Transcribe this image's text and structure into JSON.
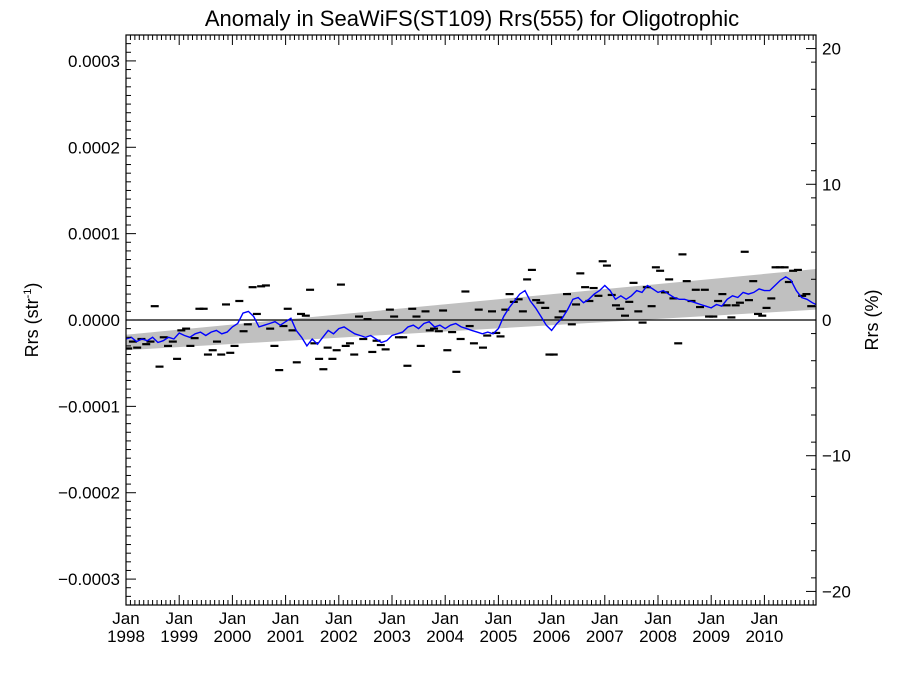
{
  "chart_data": {
    "type": "line",
    "title": "Anomaly in SeaWiFS(ST109) Rrs(555) for Oligotrophic",
    "ylabel_left": "Rrs (str",
    "ylabel_left_sup": "-1",
    "ylabel_left_close": ")",
    "ylabel_right": "Rrs (%)",
    "x_range": [
      1998.0,
      2010.97
    ],
    "y_left_range": [
      -0.00033,
      0.00033
    ],
    "y_right_range": [
      -21.0,
      21.0
    ],
    "grid": false,
    "left_ticks": [
      {
        "value": 0.0003,
        "label": "0.0003"
      },
      {
        "value": 0.0002,
        "label": "0.0002"
      },
      {
        "value": 0.0001,
        "label": "0.0001"
      },
      {
        "value": 0.0,
        "label": "0.0000"
      },
      {
        "value": -0.0001,
        "label": "−0.0001"
      },
      {
        "value": -0.0002,
        "label": "−0.0002"
      },
      {
        "value": -0.0003,
        "label": "−0.0003"
      }
    ],
    "right_ticks": [
      {
        "value": 20,
        "label": "20"
      },
      {
        "value": 10,
        "label": "10"
      },
      {
        "value": 0,
        "label": "0"
      },
      {
        "value": -10,
        "label": "−10"
      },
      {
        "value": -20,
        "label": "−20"
      }
    ],
    "x_ticks": [
      {
        "value": 1998,
        "month": "Jan",
        "year": "1998"
      },
      {
        "value": 1999,
        "month": "Jan",
        "year": "1999"
      },
      {
        "value": 2000,
        "month": "Jan",
        "year": "2000"
      },
      {
        "value": 2001,
        "month": "Jan",
        "year": "2001"
      },
      {
        "value": 2002,
        "month": "Jan",
        "year": "2002"
      },
      {
        "value": 2003,
        "month": "Jan",
        "year": "2003"
      },
      {
        "value": 2004,
        "month": "Jan",
        "year": "2004"
      },
      {
        "value": 2005,
        "month": "Jan",
        "year": "2005"
      },
      {
        "value": 2006,
        "month": "Jan",
        "year": "2006"
      },
      {
        "value": 2007,
        "month": "Jan",
        "year": "2007"
      },
      {
        "value": 2008,
        "month": "Jan",
        "year": "2008"
      },
      {
        "value": 2009,
        "month": "Jan",
        "year": "2009"
      },
      {
        "value": 2010,
        "month": "Jan",
        "year": "2010"
      }
    ],
    "trend_band": {
      "x": [
        1998.0,
        2010.97
      ],
      "upper": [
        -1.7e-05,
        5.9e-05
      ],
      "lower": [
        -3.5e-05,
        1.2e-05
      ]
    },
    "zero_line": 0.0,
    "series": [
      {
        "kind": "monthly_points",
        "color": "#000000",
        "x": [
          1998.04,
          1998.13,
          1998.21,
          1998.29,
          1998.38,
          1998.46,
          1998.54,
          1998.63,
          1998.71,
          1998.79,
          1998.88,
          1998.96,
          1999.04,
          1999.13,
          1999.21,
          1999.29,
          1999.38,
          1999.46,
          1999.54,
          1999.63,
          1999.71,
          1999.79,
          1999.88,
          1999.96,
          2000.04,
          2000.13,
          2000.21,
          2000.29,
          2000.38,
          2000.46,
          2000.54,
          2000.63,
          2000.71,
          2000.79,
          2000.88,
          2000.96,
          2001.04,
          2001.13,
          2001.21,
          2001.29,
          2001.38,
          2001.46,
          2001.54,
          2001.63,
          2001.71,
          2001.79,
          2001.88,
          2001.96,
          2002.04,
          2002.13,
          2002.21,
          2002.29,
          2002.38,
          2002.46,
          2002.54,
          2002.63,
          2002.71,
          2002.79,
          2002.88,
          2002.96,
          2003.04,
          2003.13,
          2003.21,
          2003.29,
          2003.38,
          2003.46,
          2003.54,
          2003.63,
          2003.71,
          2003.79,
          2003.88,
          2003.96,
          2004.04,
          2004.13,
          2004.21,
          2004.29,
          2004.38,
          2004.46,
          2004.54,
          2004.63,
          2004.71,
          2004.79,
          2004.88,
          2004.96,
          2005.04,
          2005.13,
          2005.21,
          2005.29,
          2005.38,
          2005.46,
          2005.54,
          2005.63,
          2005.71,
          2005.79,
          2005.88,
          2005.96,
          2006.04,
          2006.13,
          2006.21,
          2006.29,
          2006.38,
          2006.46,
          2006.54,
          2006.63,
          2006.71,
          2006.79,
          2006.88,
          2006.96,
          2007.04,
          2007.13,
          2007.21,
          2007.29,
          2007.38,
          2007.46,
          2007.54,
          2007.63,
          2007.71,
          2007.79,
          2007.88,
          2007.96,
          2008.04,
          2008.13,
          2008.21,
          2008.29,
          2008.38,
          2008.46,
          2008.54,
          2008.63,
          2008.71,
          2008.79,
          2008.88,
          2008.96,
          2009.04,
          2009.13,
          2009.21,
          2009.29,
          2009.38,
          2009.46,
          2009.54,
          2009.63,
          2009.71,
          2009.79,
          2009.88,
          2009.96,
          2010.04,
          2010.13,
          2010.21,
          2010.29,
          2010.38,
          2010.46,
          2010.54,
          2010.63,
          2010.71,
          2010.79,
          2010.88
        ],
        "values": [
          -3.3e-05,
          -2.5e-05,
          -3.2e-05,
          -2.2e-05,
          -2.8e-05,
          -2.5e-05,
          1.6e-05,
          -5.4e-05,
          -2e-05,
          -3e-05,
          -2.5e-05,
          -4.5e-05,
          -1.2e-05,
          -1e-05,
          -3e-05,
          -2.1e-05,
          1.3e-05,
          1.3e-05,
          -4e-05,
          -3.5e-05,
          -2.5e-05,
          -4e-05,
          1.8e-05,
          -3.8e-05,
          -3e-05,
          2.2e-05,
          -1.3e-05,
          -5e-06,
          3.8e-05,
          7e-06,
          3.9e-05,
          4e-05,
          -1e-05,
          -3e-05,
          -5.8e-05,
          -7e-06,
          1.3e-05,
          -1.2e-05,
          -4.9e-05,
          7e-06,
          5e-06,
          3.5e-05,
          -2.7e-05,
          -4.5e-05,
          -5.7e-05,
          -3.2e-05,
          -4.5e-05,
          -3.5e-05,
          4.1e-05,
          -3e-05,
          -2.7e-05,
          -4e-05,
          4e-06,
          -2.2e-05,
          1e-06,
          -3.7e-05,
          -2.4e-05,
          -2.9e-05,
          -3.4e-05,
          1.2e-05,
          4e-06,
          -2e-05,
          -2e-05,
          -5.3e-05,
          1.3e-05,
          4e-06,
          -3e-05,
          1e-05,
          -1.2e-05,
          -1e-05,
          -1.3e-05,
          1.1e-05,
          -3.5e-05,
          -1.4e-05,
          -6e-05,
          -2.2e-05,
          3.3e-05,
          -7e-06,
          -2.7e-05,
          1.2e-05,
          -3.2e-05,
          -1.8e-05,
          1e-05,
          -1.5e-05,
          -1.9e-05,
          1.2e-05,
          3e-05,
          2.1e-05,
          2.4e-05,
          1e-05,
          4.7e-05,
          5.8e-05,
          2.3e-05,
          2e-05,
          1.4e-05,
          -4e-05,
          -4e-05,
          3e-06,
          1e-05,
          3e-05,
          -5e-06,
          1.8e-05,
          5.4e-05,
          3.8e-05,
          2.2e-05,
          3.7e-05,
          2.8e-05,
          6.8e-05,
          6.3e-05,
          2.9e-05,
          1.7e-05,
          1.3e-05,
          5e-06,
          2.1e-05,
          4.3e-05,
          1e-05,
          -3e-06,
          3.8e-05,
          1.6e-05,
          6.1e-05,
          5.7e-05,
          3.2e-05,
          4.7e-05,
          2.5e-05,
          -2.7e-05,
          7.6e-05,
          4.5e-05,
          2.2e-05,
          3.5e-05,
          1.5e-05,
          3.5e-05,
          4e-06,
          4e-06,
          2.2e-05,
          3e-05,
          1.7e-05,
          3e-06,
          1.7e-05,
          2e-05,
          7.9e-05,
          2.3e-05,
          4.5e-05,
          7e-06,
          5e-06,
          1.4e-05,
          2.5e-05,
          6.1e-05,
          6.1e-05,
          6.1e-05,
          4.4e-05,
          5.7e-05,
          5.8e-05,
          2.8e-05,
          3e-05,
          1.6e-05
        ]
      },
      {
        "kind": "running_mean",
        "color": "#0000ff",
        "x": [
          1998.0,
          1998.1,
          1998.2,
          1998.3,
          1998.4,
          1998.5,
          1998.6,
          1998.7,
          1998.8,
          1998.9,
          1999.0,
          1999.1,
          1999.2,
          1999.3,
          1999.4,
          1999.5,
          1999.6,
          1999.7,
          1999.8,
          1999.9,
          2000.0,
          2000.1,
          2000.2,
          2000.3,
          2000.4,
          2000.5,
          2000.6,
          2000.7,
          2000.8,
          2000.9,
          2001.0,
          2001.1,
          2001.2,
          2001.3,
          2001.4,
          2001.5,
          2001.6,
          2001.7,
          2001.8,
          2001.9,
          2002.0,
          2002.1,
          2002.2,
          2002.3,
          2002.4,
          2002.5,
          2002.6,
          2002.7,
          2002.8,
          2002.9,
          2003.0,
          2003.1,
          2003.2,
          2003.3,
          2003.4,
          2003.5,
          2003.6,
          2003.7,
          2003.8,
          2003.9,
          2004.0,
          2004.1,
          2004.2,
          2004.3,
          2004.4,
          2004.5,
          2004.6,
          2004.7,
          2004.8,
          2004.9,
          2005.0,
          2005.1,
          2005.2,
          2005.3,
          2005.4,
          2005.5,
          2005.6,
          2005.7,
          2005.8,
          2005.9,
          2006.0,
          2006.1,
          2006.2,
          2006.3,
          2006.4,
          2006.5,
          2006.6,
          2006.7,
          2006.8,
          2006.9,
          2007.0,
          2007.1,
          2007.2,
          2007.3,
          2007.4,
          2007.5,
          2007.6,
          2007.7,
          2007.8,
          2007.9,
          2008.0,
          2008.1,
          2008.2,
          2008.3,
          2008.4,
          2008.5,
          2008.6,
          2008.7,
          2008.8,
          2008.9,
          2009.0,
          2009.1,
          2009.2,
          2009.3,
          2009.4,
          2009.5,
          2009.6,
          2009.7,
          2009.8,
          2009.9,
          2010.0,
          2010.1,
          2010.2,
          2010.3,
          2010.4,
          2010.5,
          2010.6,
          2010.7,
          2010.8,
          2010.9,
          2010.97
        ],
        "values": [
          -2.2e-05,
          -2e-05,
          -2.5e-05,
          -2.2e-05,
          -2.4e-05,
          -2e-05,
          -2.6e-05,
          -2.4e-05,
          -2e-05,
          -2.2e-05,
          -1.5e-05,
          -1.8e-05,
          -2e-05,
          -1.6e-05,
          -1.4e-05,
          -1.8e-05,
          -1.4e-05,
          -1.2e-05,
          -1.6e-05,
          -1.4e-05,
          -8e-06,
          -4e-06,
          8e-06,
          1e-05,
          4e-06,
          -8e-06,
          -6e-06,
          -4e-06,
          -2e-06,
          -6e-06,
          -2e-06,
          2e-06,
          -1.2e-05,
          -2e-05,
          -3e-05,
          -2.2e-05,
          -2.8e-05,
          -2e-05,
          -1.2e-05,
          -1.6e-05,
          -1e-05,
          -8e-06,
          -1.2e-05,
          -1.6e-05,
          -1.8e-05,
          -2e-05,
          -1.8e-05,
          -2.2e-05,
          -2.6e-05,
          -2.4e-05,
          -1.8e-05,
          -1.6e-05,
          -1.4e-05,
          -8e-06,
          -6e-06,
          -1e-05,
          -4e-06,
          -2e-06,
          -8e-06,
          -6e-06,
          -1e-05,
          -6e-06,
          -4e-06,
          -8e-06,
          -1e-05,
          -1.2e-05,
          -1.4e-05,
          -1.6e-05,
          -1.4e-05,
          -1.6e-05,
          -1e-05,
          4e-06,
          1.4e-05,
          2.2e-05,
          3e-05,
          3.4e-05,
          2.2e-05,
          1.4e-05,
          4e-06,
          -6e-06,
          -1.2e-05,
          -4e-06,
          2e-06,
          1.2e-05,
          2.4e-05,
          2.6e-05,
          2e-05,
          2.4e-05,
          3e-05,
          3.4e-05,
          4e-05,
          3.4e-05,
          2.4e-05,
          2.8e-05,
          2.4e-05,
          2.8e-05,
          3.4e-05,
          3.2e-05,
          4e-05,
          3.6e-05,
          3.2e-05,
          3.4e-05,
          3e-05,
          2.6e-05,
          2.4e-05,
          2.4e-05,
          2.2e-05,
          2e-05,
          1.8e-05,
          1.6e-05,
          1.4e-05,
          1.8e-05,
          1.6e-05,
          2.4e-05,
          2.8e-05,
          2.6e-05,
          3.2e-05,
          3e-05,
          3.2e-05,
          3.6e-05,
          3.4e-05,
          3.4e-05,
          4e-05,
          4.6e-05,
          5e-05,
          4.6e-05,
          3.4e-05,
          2.6e-05,
          2.4e-05,
          2e-05,
          1.8e-05
        ]
      }
    ]
  }
}
